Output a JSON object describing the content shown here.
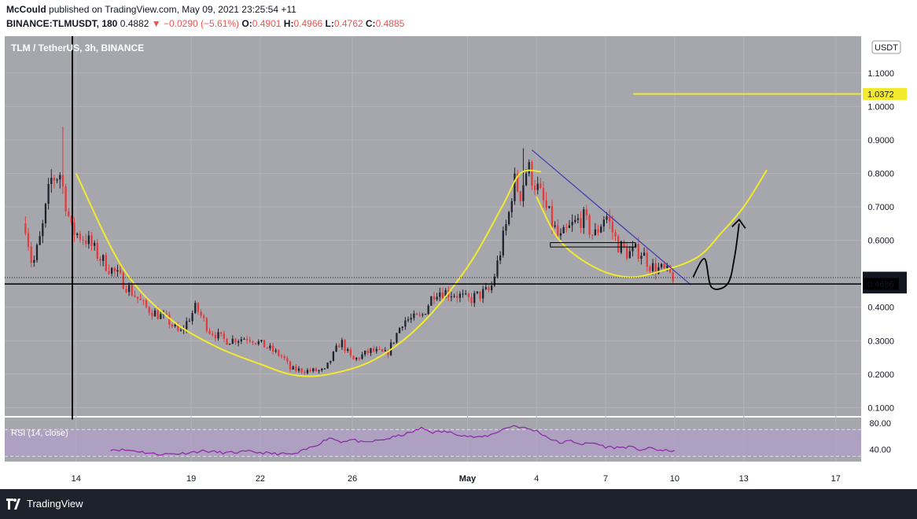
{
  "header": {
    "author": "McCould",
    "published": "published on TradingView.com, May 09, 2021 23:25:54 +11",
    "symbol_interval": "BINANCE:TLMUSDT, 180",
    "last": "0.4882",
    "change": "−0.0290 (−5.61%)",
    "o_label": "O:",
    "o_value": "0.4901",
    "h_label": "H:",
    "h_value": "0.4966",
    "l_label": "L:",
    "l_value": "0.4762",
    "c_label": "C:",
    "c_value": "0.4885"
  },
  "footer": {
    "brand": "TradingView"
  },
  "colors": {
    "pane_bg": "#a6a7ad",
    "up": "#1e222d",
    "down": "#e5393a",
    "curve": "#f3ea2e",
    "trendline": "#3f3fb4",
    "rsi_line": "#8e24aa",
    "rsi_band": "#b39bd0",
    "annotation": "#000000"
  },
  "chart_data": [
    {
      "type": "candlestick",
      "title": "TLM / TetherUS, 3h, BINANCE",
      "currency_label": "USDT",
      "ylim": [
        0.075,
        1.21
      ],
      "y_ticks": [
        "1.1000",
        "1.0000",
        "0.9000",
        "0.8000",
        "0.7000",
        "0.6000",
        "0.4000",
        "0.3000",
        "0.2000",
        "0.1000"
      ],
      "x_ticks": [
        {
          "label": "14",
          "day": 14
        },
        {
          "label": "19",
          "day": 19
        },
        {
          "label": "22",
          "day": 22
        },
        {
          "label": "26",
          "day": 26
        },
        {
          "label": "May",
          "day": 31
        },
        {
          "label": "4",
          "day": 34
        },
        {
          "label": "7",
          "day": 37
        },
        {
          "label": "10",
          "day": 40
        },
        {
          "label": "13",
          "day": 43
        },
        {
          "label": "17",
          "day": 47
        }
      ],
      "xlim_days": [
        10.9,
        48.1
      ],
      "price_labels": [
        {
          "label": "1.0372",
          "value": 1.0372,
          "style": "yellow"
        },
        {
          "label": "0.4885",
          "value": 0.4885,
          "style": "dark"
        },
        {
          "label": "02:35:15",
          "value": 0.4588,
          "style": "dark"
        },
        {
          "label": "0.4696",
          "value": 0.4696,
          "style": "dark-small"
        }
      ],
      "horizontal_lines": [
        {
          "value": 1.0372,
          "from_day": 38.2,
          "style": "yellow"
        },
        {
          "value": 0.4696,
          "style": "black"
        }
      ],
      "trendline": [
        [
          33.8,
          0.87
        ],
        [
          40.7,
          0.467
        ]
      ],
      "range_box": {
        "from_day": 34.6,
        "to_day": 38.3,
        "top": 0.593,
        "bottom": 0.58
      },
      "cup_curve_1": [
        [
          14.0,
          0.8
        ],
        [
          16.0,
          0.52
        ],
        [
          18.0,
          0.37
        ],
        [
          20.0,
          0.285
        ],
        [
          22.0,
          0.23
        ],
        [
          23.5,
          0.197
        ],
        [
          25.0,
          0.2
        ],
        [
          27.0,
          0.245
        ],
        [
          29.0,
          0.35
        ],
        [
          31.0,
          0.52
        ],
        [
          32.5,
          0.7
        ],
        [
          33.3,
          0.8
        ],
        [
          34.2,
          0.805
        ]
      ],
      "cup_curve_2": [
        [
          34.0,
          0.73
        ],
        [
          35.0,
          0.6
        ],
        [
          36.5,
          0.52
        ],
        [
          38.0,
          0.49
        ],
        [
          39.5,
          0.51
        ],
        [
          41.0,
          0.55
        ],
        [
          42.0,
          0.62
        ],
        [
          43.0,
          0.7
        ],
        [
          44.0,
          0.81
        ]
      ],
      "arrow_path": [
        [
          40.8,
          0.49
        ],
        [
          41.3,
          0.545
        ],
        [
          41.6,
          0.46
        ],
        [
          42.3,
          0.47
        ],
        [
          42.6,
          0.55
        ],
        [
          42.8,
          0.65
        ]
      ],
      "anchor_closes": [
        [
          11.8,
          0.65
        ],
        [
          12.1,
          0.52
        ],
        [
          12.5,
          0.62
        ],
        [
          12.9,
          0.78
        ],
        [
          13.3,
          0.8
        ],
        [
          13.8,
          0.63
        ],
        [
          14.5,
          0.6
        ],
        [
          15.0,
          0.55
        ],
        [
          16.0,
          0.48
        ],
        [
          17.0,
          0.4
        ],
        [
          18.0,
          0.36
        ],
        [
          18.5,
          0.32
        ],
        [
          19.2,
          0.4
        ],
        [
          19.8,
          0.33
        ],
        [
          20.5,
          0.3
        ],
        [
          21.5,
          0.31
        ],
        [
          22.3,
          0.28
        ],
        [
          23.0,
          0.25
        ],
        [
          23.3,
          0.215
        ],
        [
          24.0,
          0.21
        ],
        [
          24.8,
          0.21
        ],
        [
          25.5,
          0.3
        ],
        [
          26.0,
          0.24
        ],
        [
          26.8,
          0.27
        ],
        [
          27.5,
          0.26
        ],
        [
          28.2,
          0.36
        ],
        [
          29.0,
          0.37
        ],
        [
          29.6,
          0.45
        ],
        [
          30.5,
          0.44
        ],
        [
          31.0,
          0.42
        ],
        [
          31.6,
          0.44
        ],
        [
          32.0,
          0.45
        ],
        [
          32.3,
          0.53
        ],
        [
          32.8,
          0.68
        ],
        [
          33.0,
          0.78
        ],
        [
          33.3,
          0.74
        ],
        [
          33.6,
          0.82
        ],
        [
          34.0,
          0.76
        ],
        [
          34.5,
          0.68
        ],
        [
          35.0,
          0.6
        ],
        [
          35.5,
          0.64
        ],
        [
          36.0,
          0.67
        ],
        [
          36.5,
          0.61
        ],
        [
          37.0,
          0.68
        ],
        [
          37.5,
          0.59
        ],
        [
          38.0,
          0.56
        ],
        [
          38.5,
          0.57
        ],
        [
          39.0,
          0.52
        ],
        [
          39.5,
          0.51
        ],
        [
          40.0,
          0.488
        ]
      ]
    },
    {
      "type": "line",
      "title": "RSI (14, close)",
      "ylim": [
        22,
        88
      ],
      "y_ticks": [
        "80.00",
        "40.00"
      ],
      "levels": [
        70,
        30
      ],
      "anchors": [
        [
          15.5,
          40.5
        ],
        [
          16.5,
          38.5
        ],
        [
          17.5,
          33
        ],
        [
          18.5,
          34
        ],
        [
          19.5,
          38
        ],
        [
          20.5,
          35
        ],
        [
          21.5,
          37
        ],
        [
          22.5,
          34
        ],
        [
          23.5,
          33
        ],
        [
          24.5,
          48
        ],
        [
          25.0,
          58
        ],
        [
          25.5,
          52
        ],
        [
          26.0,
          55
        ],
        [
          26.5,
          50
        ],
        [
          27.5,
          56
        ],
        [
          28.5,
          65
        ],
        [
          29.0,
          72
        ],
        [
          29.5,
          66
        ],
        [
          30.0,
          67
        ],
        [
          30.5,
          64
        ],
        [
          31.0,
          60
        ],
        [
          31.5,
          58
        ],
        [
          32.0,
          62
        ],
        [
          32.5,
          70
        ],
        [
          33.0,
          76
        ],
        [
          33.5,
          72
        ],
        [
          34.0,
          68
        ],
        [
          34.5,
          58
        ],
        [
          35.0,
          50
        ],
        [
          35.5,
          53
        ],
        [
          36.0,
          48
        ],
        [
          36.5,
          50
        ],
        [
          37.0,
          44
        ],
        [
          37.5,
          43
        ],
        [
          38.0,
          44
        ],
        [
          38.5,
          40
        ],
        [
          39.0,
          42
        ],
        [
          39.5,
          38
        ],
        [
          40.0,
          39
        ]
      ]
    }
  ]
}
